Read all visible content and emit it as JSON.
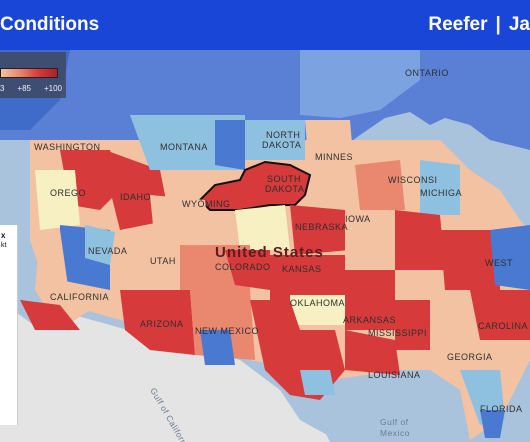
{
  "header": {
    "title": "Conditions",
    "right_a": "Reefer",
    "right_sep": "|",
    "right_b": "Ja"
  },
  "legend": {
    "tick_left": "3",
    "tick_mid": "+85",
    "tick_right": "+100"
  },
  "sidebox": {
    "line1": "x",
    "line2": "kt"
  },
  "labels": {
    "ontario": "ONTARIO",
    "washington": "WASHINGTON",
    "montana": "MONTANA",
    "north_dakota_1": "NORTH",
    "north_dakota_2": "DAKOTA",
    "south_dakota_1": "SOUTH",
    "south_dakota_2": "DAKOTA",
    "minnesota": "MINNES",
    "oregon": "OREGO",
    "idaho": "IDAHO",
    "wyoming": "WYOMING",
    "wisconsin": "WISCONSI",
    "michigan": "MICHIGA",
    "nevada": "NEVADA",
    "utah": "UTAH",
    "colorado": "COLORADO",
    "nebraska": "NEBRASKA",
    "iowa": "IOWA",
    "kansas": "KANSAS",
    "united_states": "United States",
    "california": "CALIFORNIA",
    "arizona": "ARIZONA",
    "new_mexico": "NEW MEXICO",
    "oklahoma": "OKLAHOMA",
    "arkansas": "ARKANSAS",
    "mississippi": "MISSISSIPPI",
    "louisiana": "LOUISIANA",
    "georgia": "GEORGIA",
    "west": "WEST",
    "carolina": "CAROLINA",
    "florida": "FLORIDA",
    "gulf_of_california": "Gulf of California",
    "gulf_of_mexico_1": "Gulf of",
    "gulf_of_mexico_2": "Mexico"
  },
  "colors": {
    "water": "#a9c3dd",
    "land_gray": "#e4e4e4",
    "canada": "#5a80d6",
    "hot": "#d63a3a",
    "warm": "#e9876f",
    "mild": "#f2c2a2",
    "cool": "#8ec1e0",
    "cold": "#4a79d1",
    "neutral": "#f6f0c2",
    "header": "#1a46d8"
  }
}
